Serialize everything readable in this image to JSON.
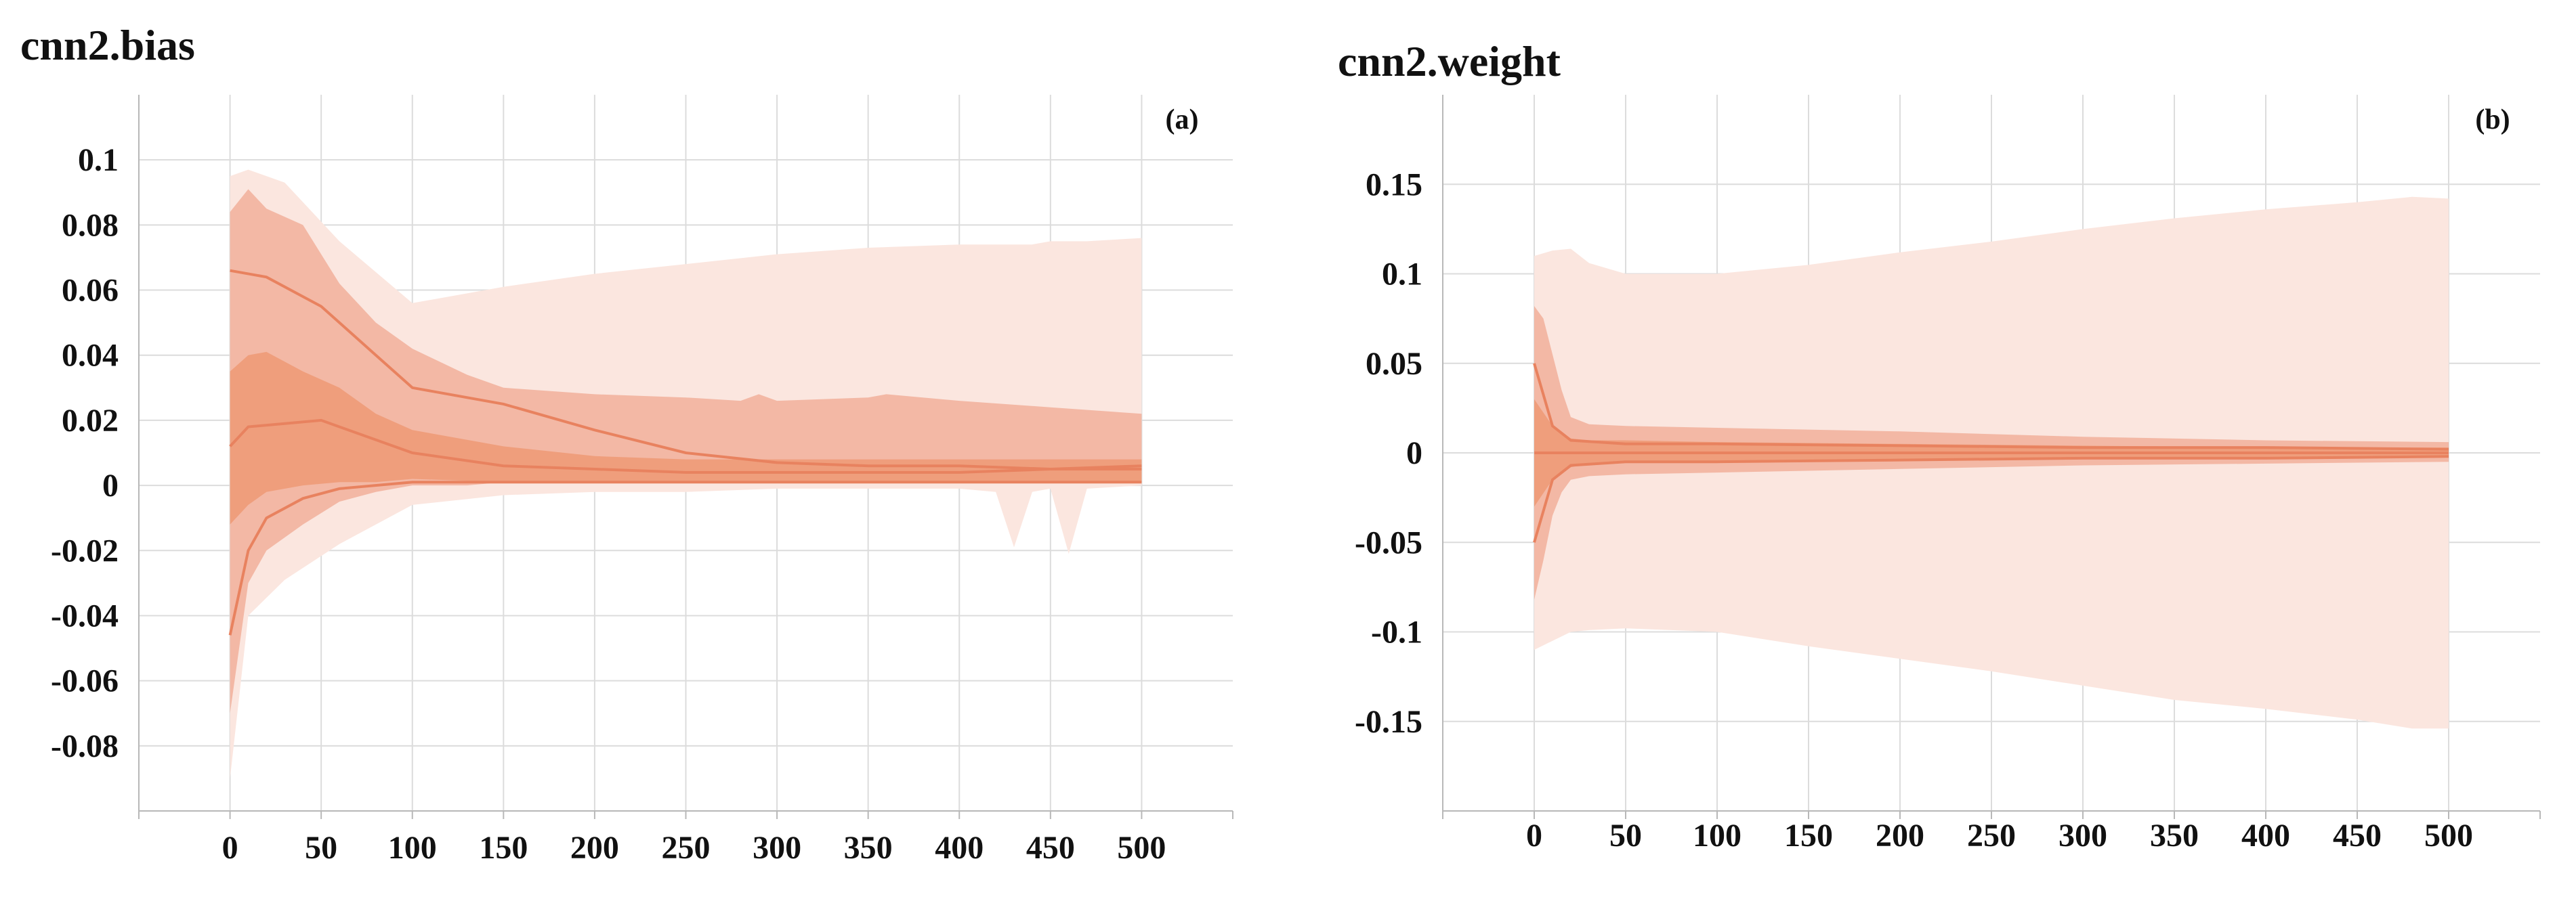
{
  "chart_data": [
    {
      "id": "a",
      "type": "area",
      "title": "cnn2.bias",
      "panel_label": "(a)",
      "xlabel": "",
      "ylabel": "",
      "xlim": [
        -50,
        550
      ],
      "ylim": [
        -0.1,
        0.12
      ],
      "x_ticks": [
        0,
        50,
        100,
        150,
        200,
        250,
        300,
        350,
        400,
        450,
        500
      ],
      "y_ticks": [
        0.1,
        0.08,
        0.06,
        0.04,
        0.02,
        0,
        -0.02,
        -0.04,
        -0.06,
        -0.08
      ],
      "y_tick_labels": [
        "0.1",
        "0.08",
        "0.06",
        "0.04",
        "0.02",
        "0",
        "-0.02",
        "-0.04",
        "-0.06",
        "-0.08"
      ],
      "x_tick_labels": [
        "0",
        "50",
        "100",
        "150",
        "200",
        "250",
        "300",
        "350",
        "400",
        "450",
        "500"
      ],
      "colors": {
        "outer": "#fbe6df",
        "band2": "#f2b29e",
        "band3": "#ee956f",
        "line": "#e8825f"
      },
      "series": [
        {
          "name": "outer-band",
          "x": [
            0,
            10,
            30,
            60,
            100,
            150,
            200,
            250,
            300,
            350,
            400,
            420,
            430,
            440,
            450,
            460,
            470,
            500
          ],
          "upper": [
            0.095,
            0.097,
            0.093,
            0.075,
            0.056,
            0.061,
            0.065,
            0.068,
            0.071,
            0.073,
            0.074,
            0.074,
            0.074,
            0.074,
            0.075,
            0.075,
            0.075,
            0.076
          ],
          "lower": [
            -0.09,
            -0.04,
            -0.029,
            -0.018,
            -0.006,
            -0.003,
            -0.002,
            -0.002,
            -0.001,
            -0.001,
            -0.001,
            -0.002,
            -0.019,
            -0.002,
            -0.001,
            -0.021,
            -0.001,
            0
          ]
        },
        {
          "name": "second-band",
          "x": [
            0,
            10,
            20,
            40,
            60,
            80,
            100,
            130,
            150,
            200,
            250,
            280,
            290,
            300,
            350,
            360,
            400,
            450,
            500
          ],
          "upper": [
            0.084,
            0.091,
            0.085,
            0.08,
            0.062,
            0.05,
            0.042,
            0.034,
            0.03,
            0.028,
            0.027,
            0.026,
            0.028,
            0.026,
            0.027,
            0.028,
            0.026,
            0.024,
            0.022
          ],
          "lower": [
            -0.07,
            -0.03,
            -0.02,
            -0.012,
            -0.005,
            -0.002,
            0,
            0,
            0.001,
            0.001,
            0.001,
            0.001,
            0.001,
            0.001,
            0.001,
            0.001,
            0.001,
            0.001,
            0.001
          ]
        },
        {
          "name": "inner-band",
          "x": [
            0,
            10,
            20,
            40,
            60,
            80,
            100,
            150,
            200,
            250,
            300,
            350,
            400,
            450,
            500
          ],
          "upper": [
            0.035,
            0.04,
            0.041,
            0.035,
            0.03,
            0.022,
            0.017,
            0.012,
            0.009,
            0.008,
            0.008,
            0.008,
            0.008,
            0.008,
            0.008
          ],
          "lower": [
            -0.012,
            -0.006,
            -0.002,
            0,
            0.001,
            0.001,
            0.002,
            0.001,
            0.001,
            0.001,
            0.001,
            0.001,
            0.001,
            0.001,
            0.001
          ]
        },
        {
          "name": "line-upper",
          "x": [
            0,
            20,
            50,
            80,
            100,
            150,
            200,
            250,
            300,
            350,
            400,
            450,
            500
          ],
          "y": [
            0.066,
            0.064,
            0.055,
            0.04,
            0.03,
            0.025,
            0.017,
            0.01,
            0.007,
            0.006,
            0.006,
            0.005,
            0.005
          ]
        },
        {
          "name": "line-median",
          "x": [
            0,
            10,
            30,
            50,
            80,
            100,
            150,
            200,
            250,
            300,
            350,
            400,
            450,
            500
          ],
          "y": [
            0.012,
            0.018,
            0.019,
            0.02,
            0.014,
            0.01,
            0.006,
            0.005,
            0.004,
            0.004,
            0.004,
            0.004,
            0.005,
            0.006
          ]
        },
        {
          "name": "line-lower",
          "x": [
            0,
            10,
            20,
            40,
            60,
            100,
            150,
            200,
            300,
            400,
            500
          ],
          "y": [
            -0.046,
            -0.02,
            -0.01,
            -0.004,
            -0.001,
            0.001,
            0.001,
            0.001,
            0.001,
            0.001,
            0.001
          ]
        }
      ]
    },
    {
      "id": "b",
      "type": "area",
      "title": "cnn2.weight",
      "panel_label": "(b)",
      "xlabel": "",
      "ylabel": "",
      "xlim": [
        -50,
        550
      ],
      "ylim": [
        -0.2,
        0.2
      ],
      "x_ticks": [
        0,
        50,
        100,
        150,
        200,
        250,
        300,
        350,
        400,
        450,
        500
      ],
      "y_ticks": [
        0.15,
        0.1,
        0.05,
        0,
        -0.05,
        -0.1,
        -0.15
      ],
      "y_tick_labels": [
        "0.15",
        "0.1",
        "0.05",
        "0",
        "-0.05",
        "-0.1",
        "-0.15"
      ],
      "x_tick_labels": [
        "0",
        "50",
        "100",
        "150",
        "200",
        "250",
        "300",
        "350",
        "400",
        "450",
        "500"
      ],
      "colors": {
        "outer": "#fbe6df",
        "band2": "#f2b29e",
        "band3": "#ee956f",
        "line": "#e8825f"
      },
      "series": [
        {
          "name": "outer-band",
          "x": [
            0,
            10,
            20,
            30,
            50,
            100,
            150,
            200,
            250,
            300,
            350,
            400,
            450,
            480,
            500
          ],
          "upper": [
            0.11,
            0.113,
            0.114,
            0.106,
            0.1,
            0.1,
            0.105,
            0.112,
            0.118,
            0.125,
            0.131,
            0.136,
            0.14,
            0.143,
            0.142
          ],
          "lower": [
            -0.11,
            -0.105,
            -0.1,
            -0.099,
            -0.098,
            -0.1,
            -0.108,
            -0.115,
            -0.122,
            -0.13,
            -0.138,
            -0.143,
            -0.149,
            -0.154,
            -0.154
          ]
        },
        {
          "name": "second-band",
          "x": [
            0,
            5,
            10,
            15,
            20,
            30,
            50,
            100,
            200,
            300,
            400,
            500
          ],
          "upper": [
            0.082,
            0.075,
            0.055,
            0.035,
            0.02,
            0.016,
            0.015,
            0.014,
            0.012,
            0.009,
            0.007,
            0.006
          ],
          "lower": [
            -0.082,
            -0.06,
            -0.035,
            -0.022,
            -0.015,
            -0.013,
            -0.012,
            -0.011,
            -0.009,
            -0.007,
            -0.006,
            -0.005
          ]
        },
        {
          "name": "inner-band",
          "x": [
            0,
            10,
            20,
            30,
            50,
            100,
            200,
            300,
            400,
            500
          ],
          "upper": [
            0.03,
            0.015,
            0.008,
            0.007,
            0.007,
            0.006,
            0.005,
            0.004,
            0.003,
            0.003
          ],
          "lower": [
            -0.03,
            -0.015,
            -0.008,
            -0.006,
            -0.005,
            -0.005,
            -0.004,
            -0.003,
            -0.003,
            -0.002
          ]
        },
        {
          "name": "line-upper",
          "x": [
            0,
            10,
            20,
            50,
            100,
            200,
            300,
            400,
            500
          ],
          "y": [
            0.05,
            0.015,
            0.007,
            0.005,
            0.005,
            0.004,
            0.003,
            0.003,
            0.002
          ]
        },
        {
          "name": "line-median",
          "x": [
            0,
            10,
            50,
            100,
            200,
            300,
            400,
            500
          ],
          "y": [
            0,
            0,
            0,
            0,
            0,
            0,
            0,
            0
          ]
        },
        {
          "name": "line-lower",
          "x": [
            0,
            10,
            20,
            50,
            100,
            200,
            300,
            400,
            500
          ],
          "y": [
            -0.05,
            -0.015,
            -0.007,
            -0.005,
            -0.005,
            -0.004,
            -0.003,
            -0.003,
            -0.002
          ]
        }
      ]
    }
  ]
}
